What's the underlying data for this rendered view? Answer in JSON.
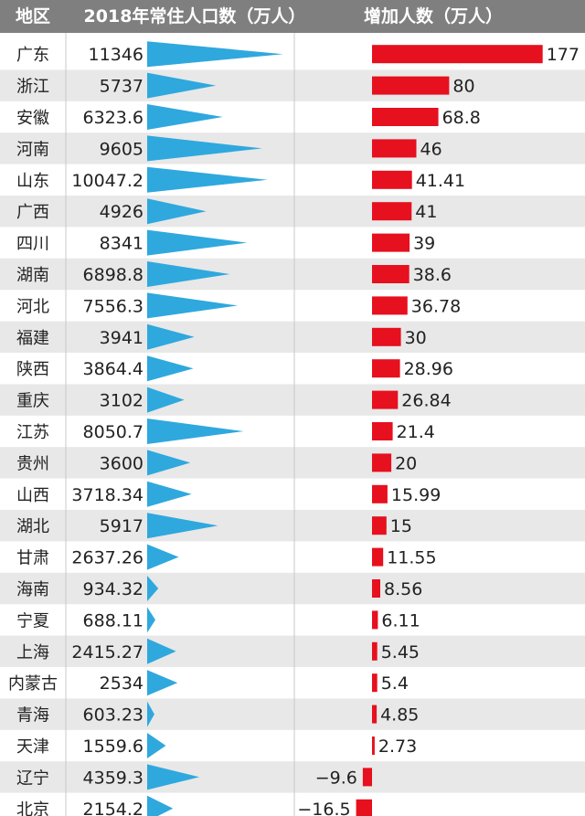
{
  "header": {
    "region": "地区",
    "population": "2018年常住人口数（万人）",
    "increase": "增加人数（万人）"
  },
  "colors": {
    "header_bg": "#7f7f7f",
    "population_triangle": "#2fa8de",
    "increase_bar": "#e6101e",
    "row_stripe": "#e8e8e8",
    "divider": "#c8c8c8"
  },
  "chart_data": [
    {
      "type": "bar",
      "categories": [
        "广东",
        "浙江",
        "安徽",
        "河南",
        "山东",
        "广西",
        "四川",
        "湖南",
        "河北",
        "福建",
        "陕西",
        "重庆",
        "江苏",
        "贵州",
        "山西",
        "湖北",
        "甘肃",
        "海南",
        "宁夏",
        "上海",
        "内蒙古",
        "青海",
        "天津",
        "辽宁",
        "北京"
      ],
      "values": [
        11346,
        5737,
        6323.6,
        9605,
        10047.2,
        4926,
        8341,
        6898.8,
        7556.3,
        3941,
        3864.4,
        3102,
        8050.7,
        3600,
        3718.34,
        5917,
        2637.26,
        934.32,
        688.11,
        2415.27,
        2534,
        603.23,
        1559.6,
        4359.3,
        2154.2
      ],
      "value_labels": [
        "11346",
        "5737",
        "6323.6",
        "9605",
        "10047.2",
        "4926",
        "8341",
        "6898.8",
        "7556.3",
        "3941",
        "3864.4",
        "3102",
        "8050.7",
        "3600",
        "3718.34",
        "5917",
        "2637.26",
        "934.32",
        "688.11",
        "2415.27",
        "2534",
        "603.23",
        "1559.6",
        "4359.3",
        "2154.2"
      ],
      "title": "2018年常住人口数（万人）",
      "mark": "triangle"
    },
    {
      "type": "bar",
      "categories": [
        "广东",
        "浙江",
        "安徽",
        "河南",
        "山东",
        "广西",
        "四川",
        "湖南",
        "河北",
        "福建",
        "陕西",
        "重庆",
        "江苏",
        "贵州",
        "山西",
        "湖北",
        "甘肃",
        "海南",
        "宁夏",
        "上海",
        "内蒙古",
        "青海",
        "天津",
        "辽宁",
        "北京"
      ],
      "values": [
        177,
        80,
        68.8,
        46,
        41.41,
        41,
        39,
        38.6,
        36.78,
        30,
        28.96,
        26.84,
        21.4,
        20,
        15.99,
        15,
        11.55,
        8.56,
        6.11,
        5.45,
        5.4,
        4.85,
        2.73,
        -9.6,
        -16.5
      ],
      "value_labels": [
        "177",
        "80",
        "68.8",
        "46",
        "41.41",
        "41",
        "39",
        "38.6",
        "36.78",
        "30",
        "28.96",
        "26.84",
        "21.4",
        "20",
        "15.99",
        "15",
        "11.55",
        "8.56",
        "6.11",
        "5.45",
        "5.4",
        "4.85",
        "2.73",
        "−9.6",
        "−16.5"
      ],
      "title": "增加人数（万人）"
    }
  ]
}
